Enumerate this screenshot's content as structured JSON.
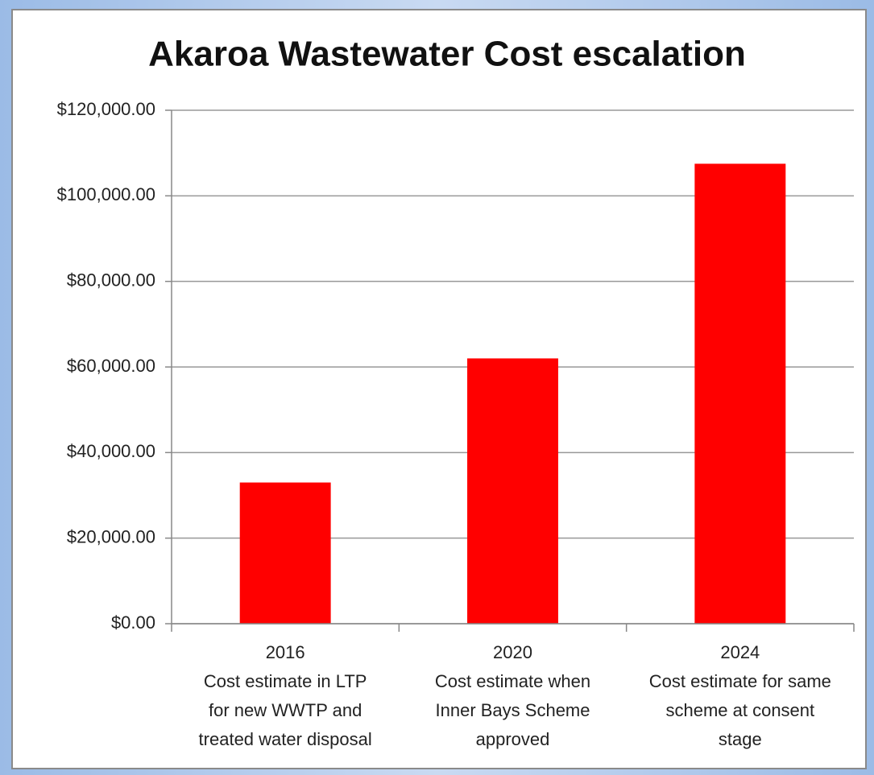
{
  "chart_data": {
    "type": "bar",
    "title": "Akaroa Wastewater Cost escalation",
    "categories": [
      "2016\nCost estimate in LTP\nfor new WWTP and\ntreated water disposal",
      "2020\nCost estimate when\nInner Bays Scheme\napproved",
      "2024\nCost estimate for same\nscheme at consent\nstage"
    ],
    "values": [
      33000,
      62000,
      107500
    ],
    "color": "#ff0000",
    "ylim": [
      0,
      120000
    ],
    "yticks": [
      {
        "value": 0,
        "label": "$0.00"
      },
      {
        "value": 20000,
        "label": "$20,000.00"
      },
      {
        "value": 40000,
        "label": "$40,000.00"
      },
      {
        "value": 60000,
        "label": "$60,000.00"
      },
      {
        "value": 80000,
        "label": "$80,000.00"
      },
      {
        "value": 100000,
        "label": "$100,000.00"
      },
      {
        "value": 120000,
        "label": "$120,000.00"
      }
    ],
    "grid": true
  }
}
